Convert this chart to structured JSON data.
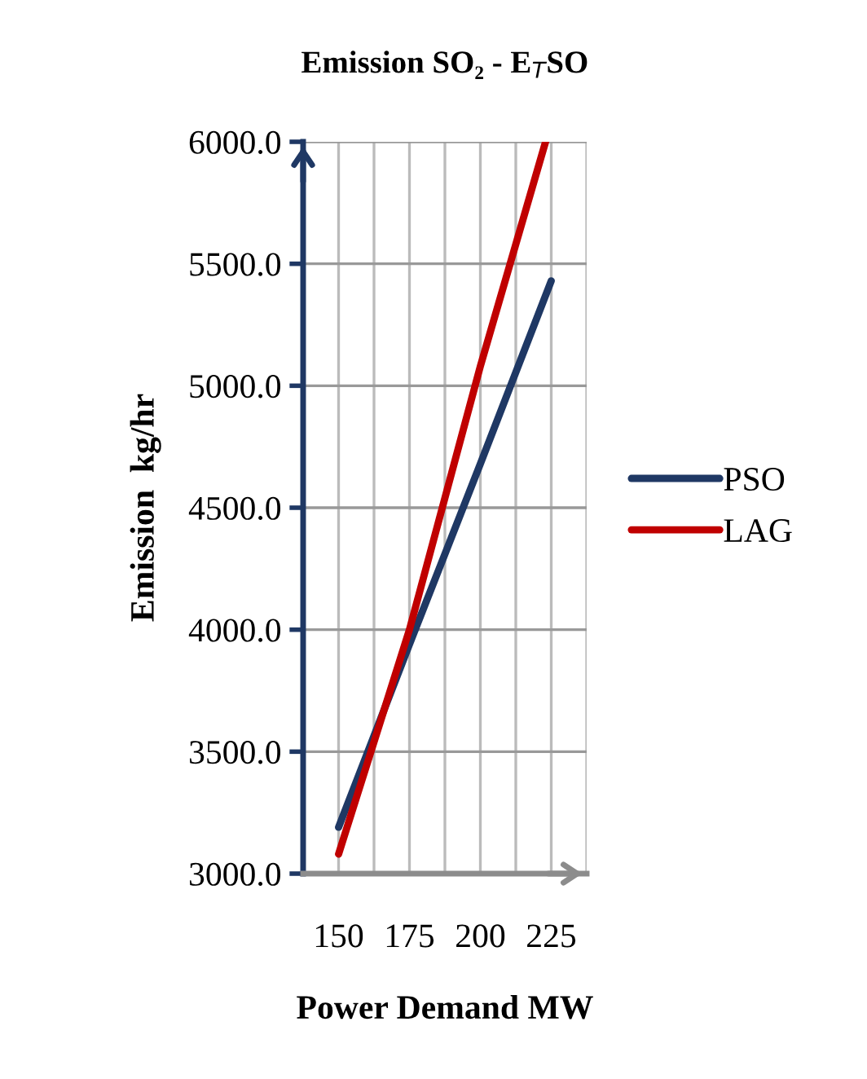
{
  "chart_data": {
    "type": "line",
    "title": "Emission SO₂ - E$_{T}$SO",
    "xlabel": "Power Demand MW",
    "ylabel": "Emission  kg/hr",
    "series": [
      {
        "name": "PSO",
        "color": "#1f3864",
        "x": [
          150,
          175,
          200,
          225
        ],
        "values": [
          3190,
          3940,
          4680,
          5430
        ]
      },
      {
        "name": "LAG",
        "color": "#c00000",
        "x": [
          150,
          175,
          200,
          223
        ],
        "values": [
          3080,
          4000,
          5080,
          6000
        ]
      }
    ],
    "xlim": [
      137.5,
      237.5
    ],
    "xticks": [
      {
        "value": 137.5,
        "label": null
      },
      150,
      {
        "value": 162.5,
        "label": null
      },
      175,
      {
        "value": 187.5,
        "label": null
      },
      200,
      {
        "value": 212.5,
        "label": null
      },
      225,
      {
        "value": 237.5,
        "label": null
      }
    ],
    "ylim": [
      3000,
      6000
    ],
    "yticks": [
      {
        "value": 3000,
        "label": "3000.0"
      },
      {
        "value": 3500,
        "label": "3500.0"
      },
      {
        "value": 4000,
        "label": "4000.0"
      },
      {
        "value": 4500,
        "label": "4500.0"
      },
      {
        "value": 5000,
        "label": "5000.0"
      },
      {
        "value": 5500,
        "label": "5500.0"
      },
      {
        "value": 6000,
        "label": "6000.0"
      }
    ],
    "grid": true,
    "legend": "right",
    "marker": "none",
    "line_style": "solid"
  }
}
